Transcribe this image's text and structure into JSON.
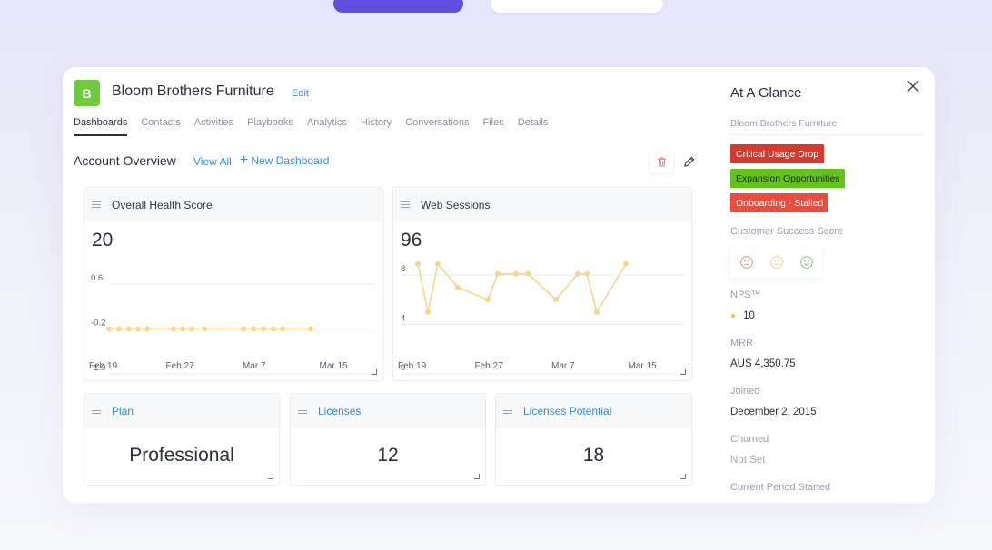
{
  "colors": {
    "accent_blue": "#2f8ee0",
    "avatar_green": "#6ecb3e",
    "chart_line": "#f3d98c",
    "badge_red": "#d9392b",
    "badge_green": "#63c31a",
    "badge_orange_red": "#ef4a3b"
  },
  "account": {
    "avatar_letter": "B",
    "name": "Bloom Brothers Furniture",
    "edit_label": "Edit"
  },
  "tabs": [
    {
      "label": "Dashboards",
      "active": true
    },
    {
      "label": "Contacts"
    },
    {
      "label": "Activities"
    },
    {
      "label": "Playbooks"
    },
    {
      "label": "Analytics"
    },
    {
      "label": "History"
    },
    {
      "label": "Conversations"
    },
    {
      "label": "Files"
    },
    {
      "label": "Details"
    }
  ],
  "overview": {
    "title": "Account Overview",
    "view_all": "View All",
    "new_dashboard": "New Dashboard",
    "delete_icon": "trash-icon",
    "edit_icon": "pencil-icon"
  },
  "widgets": {
    "health": {
      "title": "Overall Health Score",
      "value": "20"
    },
    "sessions": {
      "title": "Web Sessions",
      "value": "96"
    },
    "plan": {
      "title": "Plan",
      "value": "Professional"
    },
    "licenses": {
      "title": "Licenses",
      "value": "12"
    },
    "licenses_potential": {
      "title": "Licenses Potential",
      "value": "18"
    }
  },
  "chart_data": [
    {
      "type": "line",
      "name": "Overall Health Score",
      "x_ticks": [
        "Feb 19",
        "Feb 27",
        "Mar 7",
        "Mar 15"
      ],
      "y_ticks": [
        "0.6",
        "-0.2",
        "-1.0"
      ],
      "ylim": [
        -1.0,
        0.6
      ],
      "grid": true,
      "values": [
        -0.2,
        -0.2,
        -0.2,
        -0.2,
        -0.2,
        -0.2,
        -0.2,
        -0.2,
        -0.2,
        -0.2,
        -0.2,
        -0.2,
        -0.2,
        -0.2,
        -0.2
      ]
    },
    {
      "type": "line",
      "name": "Web Sessions",
      "x_ticks": [
        "Feb 19",
        "Feb 27",
        "Mar 7",
        "Mar 15"
      ],
      "y_ticks": [
        "8",
        "4",
        "0"
      ],
      "ylim": [
        0,
        8
      ],
      "grid": true,
      "values": [
        8.9,
        5.0,
        8.9,
        7.0,
        6.0,
        8.1,
        8.1,
        8.1,
        6.0,
        8.1,
        8.1,
        5.0,
        8.9
      ]
    }
  ],
  "side_panel": {
    "title": "At A Glance",
    "company": "Bloom Brothers Furniture",
    "badges": [
      "Critical Usage Drop",
      "Expansion Opportunities",
      "Onboarding - Stalled"
    ],
    "cs_score_label": "Customer Success Score",
    "faces": [
      "sad-face-icon",
      "neutral-face-icon",
      "happy-face-icon"
    ],
    "nps_label": "NPS™",
    "nps_value": "10",
    "mrr_label": "MRR",
    "mrr_value": "AUS 4,350.75",
    "joined_label": "Joined",
    "joined_value": "December 2, 2015",
    "churned_label": "Churned",
    "churned_value": "Not Set",
    "period_label": "Current Period Started"
  }
}
